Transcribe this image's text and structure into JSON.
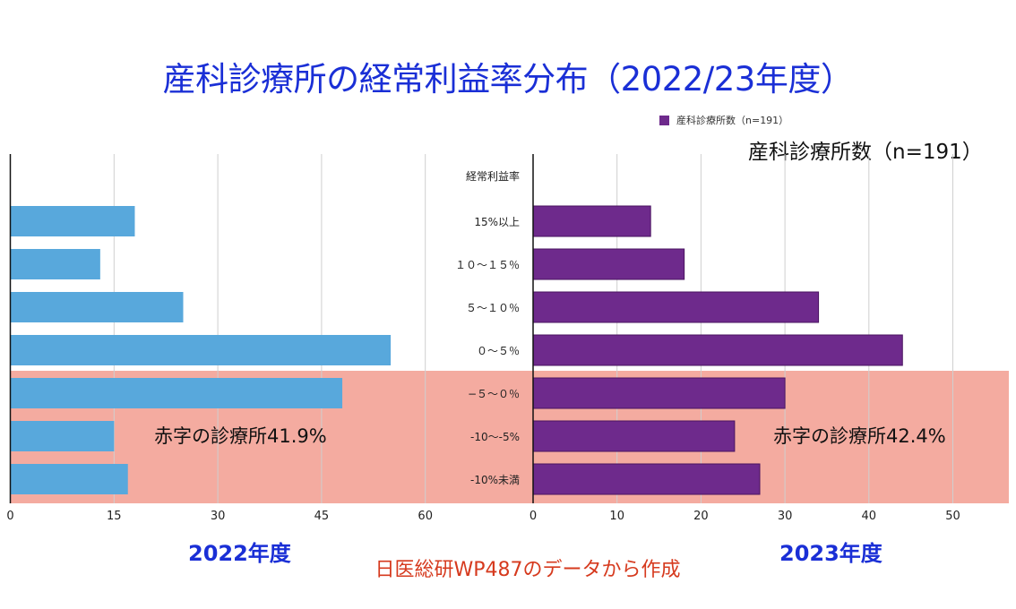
{
  "title": "産科診療所の経常利益率分布（2022/23年度）",
  "legend": {
    "label": "産科診療所数（n=191）",
    "color": "#6e2a8c"
  },
  "series_title": "産科診療所数（n=191）",
  "category_header": "経常利益率",
  "source_note": "日医総研WP487のデータから作成",
  "deficit_region_color": "#f4aba0",
  "chart_data": [
    {
      "type": "bar",
      "orientation": "horizontal",
      "title": "2022年度",
      "categories": [
        "15%以上",
        "１０〜１５％",
        "５〜１０％",
        "０〜５％",
        "−５〜０％",
        "-10〜-5%",
        "-10%未満"
      ],
      "series": [
        {
          "name": "産科診療所数（n=191）",
          "values": [
            18,
            13,
            25,
            55,
            48,
            15,
            17
          ],
          "color": "#58a8dc"
        }
      ],
      "xlim": [
        0,
        72
      ],
      "xticks": [
        0,
        15,
        30,
        45,
        60
      ],
      "grid": true,
      "annotation": "赤字の診療所41.9%",
      "deficit_categories": [
        "−５〜０％",
        "-10〜-5%",
        "-10%未満"
      ]
    },
    {
      "type": "bar",
      "orientation": "horizontal",
      "title": "2023年度",
      "categories": [
        "15%以上",
        "１０〜１５％",
        "５〜１０％",
        "０〜５％",
        "−５〜０％",
        "-10〜-5%",
        "-10%未満"
      ],
      "series": [
        {
          "name": "産科診療所数（n=191）",
          "values": [
            14,
            18,
            34,
            44,
            30,
            24,
            27
          ],
          "color": "#6e2a8c"
        }
      ],
      "xlim": [
        0,
        55
      ],
      "xticks": [
        0,
        10,
        20,
        30,
        40,
        50
      ],
      "grid": true,
      "annotation": "赤字の診療所42.4%",
      "deficit_categories": [
        "−５〜０％",
        "-10〜-5%",
        "-10%未満"
      ]
    }
  ]
}
